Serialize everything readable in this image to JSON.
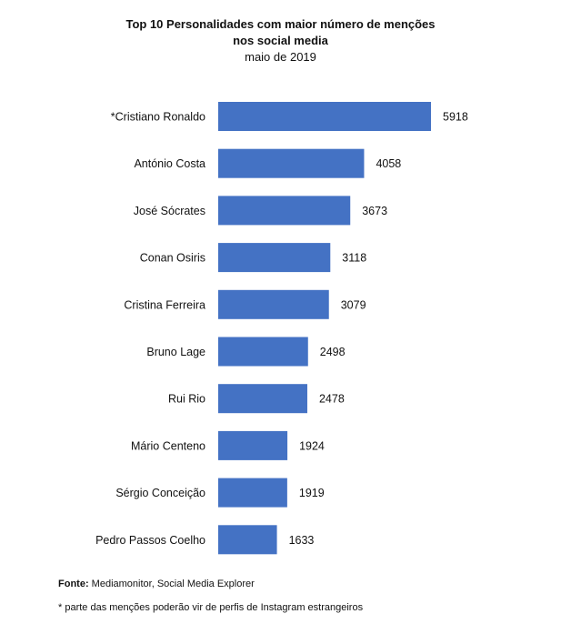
{
  "chart_data": {
    "type": "bar",
    "orientation": "horizontal",
    "title": "Top 10 Personalidades com maior número de menções nos social media",
    "title_lines": [
      "Top 10 Personalidades com maior número de menções",
      "nos social media"
    ],
    "subtitle": "maio de 2019",
    "categories": [
      "*Cristiano Ronaldo",
      "António Costa",
      "José Sócrates",
      "Conan Osiris",
      "Cristina Ferreira",
      "Bruno Lage",
      "Rui Rio",
      "Mário Centeno",
      "Sérgio Conceição",
      "Pedro Passos Coelho"
    ],
    "values": [
      5918,
      4058,
      3673,
      3118,
      3079,
      2498,
      2478,
      1924,
      1919,
      1633
    ],
    "bar_color": "#4472C4",
    "xlim": [
      0,
      5918
    ],
    "grid": false,
    "legend": "none"
  },
  "footer": {
    "source_label": "Fonte:",
    "source_text": "Mediamonitor, Social Media Explorer",
    "note": "*  parte das menções poderão vir de perfis de Instagram estrangeiros"
  }
}
